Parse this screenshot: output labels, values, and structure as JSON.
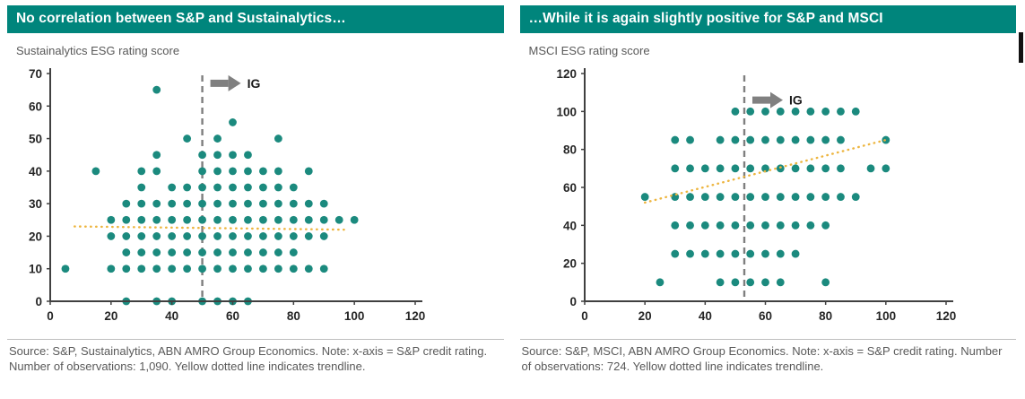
{
  "panels": [
    {
      "header": "No correlation between S&P and Sustainalytics…",
      "subtitle": "Sustainalytics ESG rating score",
      "source": "Source: S&P, Sustainalytics, ABN AMRO Group Economics. Note: x-axis = S&P credit rating. Number of observations: 1,090. Yellow dotted line indicates trendline."
    },
    {
      "header": "…While it is again slightly positive for S&P and MSCI",
      "subtitle": "MSCI ESG rating score",
      "source": "Source: S&P, MSCI, ABN AMRO Group Economics. Note: x-axis = S&P credit rating. Number of observations: 724. Yellow dotted line indicates trendline."
    }
  ],
  "colors": {
    "header_bg": "#00857C",
    "point": "#1B8A7E",
    "trendline": "#EDB53F",
    "axis": "#404040",
    "ig_line": "#7F7F7F",
    "arrow": "#808080"
  },
  "chart_data": [
    {
      "type": "scatter",
      "title": "No correlation between S&P and Sustainalytics…",
      "ylabel": "Sustainalytics ESG rating score",
      "xlabel": "S&P credit rating",
      "observations": "1,090",
      "xlim": [
        0,
        120
      ],
      "ylim": [
        0,
        70
      ],
      "xticks": [
        0,
        20,
        40,
        60,
        80,
        100,
        120
      ],
      "yticks": [
        0,
        10,
        20,
        30,
        40,
        50,
        60,
        70
      ],
      "grid": false,
      "ig_label": "IG",
      "ig_threshold_x": 50,
      "ig_arrow_y": 67,
      "trendline": {
        "x1": 8,
        "y1": 23,
        "x2": 97,
        "y2": 22
      },
      "points": [
        [
          35,
          65
        ],
        [
          60,
          55
        ],
        [
          45,
          50
        ],
        [
          55,
          50
        ],
        [
          75,
          50
        ],
        [
          35,
          45
        ],
        [
          50,
          45
        ],
        [
          55,
          45
        ],
        [
          60,
          45
        ],
        [
          65,
          45
        ],
        [
          15,
          40
        ],
        [
          30,
          40
        ],
        [
          35,
          40
        ],
        [
          50,
          40
        ],
        [
          55,
          40
        ],
        [
          60,
          40
        ],
        [
          65,
          40
        ],
        [
          70,
          40
        ],
        [
          75,
          40
        ],
        [
          85,
          40
        ],
        [
          30,
          35
        ],
        [
          40,
          35
        ],
        [
          45,
          35
        ],
        [
          50,
          35
        ],
        [
          55,
          35
        ],
        [
          60,
          35
        ],
        [
          65,
          35
        ],
        [
          70,
          35
        ],
        [
          75,
          35
        ],
        [
          80,
          35
        ],
        [
          25,
          30
        ],
        [
          30,
          30
        ],
        [
          35,
          30
        ],
        [
          40,
          30
        ],
        [
          45,
          30
        ],
        [
          50,
          30
        ],
        [
          55,
          30
        ],
        [
          60,
          30
        ],
        [
          65,
          30
        ],
        [
          70,
          30
        ],
        [
          75,
          30
        ],
        [
          80,
          30
        ],
        [
          85,
          30
        ],
        [
          90,
          30
        ],
        [
          20,
          25
        ],
        [
          25,
          25
        ],
        [
          30,
          25
        ],
        [
          35,
          25
        ],
        [
          40,
          25
        ],
        [
          45,
          25
        ],
        [
          50,
          25
        ],
        [
          55,
          25
        ],
        [
          60,
          25
        ],
        [
          65,
          25
        ],
        [
          70,
          25
        ],
        [
          75,
          25
        ],
        [
          80,
          25
        ],
        [
          85,
          25
        ],
        [
          90,
          25
        ],
        [
          95,
          25
        ],
        [
          100,
          25
        ],
        [
          20,
          20
        ],
        [
          25,
          20
        ],
        [
          30,
          20
        ],
        [
          35,
          20
        ],
        [
          40,
          20
        ],
        [
          45,
          20
        ],
        [
          50,
          20
        ],
        [
          55,
          20
        ],
        [
          60,
          20
        ],
        [
          65,
          20
        ],
        [
          70,
          20
        ],
        [
          75,
          20
        ],
        [
          80,
          20
        ],
        [
          85,
          20
        ],
        [
          90,
          20
        ],
        [
          25,
          15
        ],
        [
          30,
          15
        ],
        [
          35,
          15
        ],
        [
          40,
          15
        ],
        [
          45,
          15
        ],
        [
          50,
          15
        ],
        [
          55,
          15
        ],
        [
          60,
          15
        ],
        [
          65,
          15
        ],
        [
          70,
          15
        ],
        [
          75,
          15
        ],
        [
          80,
          15
        ],
        [
          5,
          10
        ],
        [
          20,
          10
        ],
        [
          25,
          10
        ],
        [
          30,
          10
        ],
        [
          35,
          10
        ],
        [
          40,
          10
        ],
        [
          45,
          10
        ],
        [
          50,
          10
        ],
        [
          55,
          10
        ],
        [
          60,
          10
        ],
        [
          65,
          10
        ],
        [
          70,
          10
        ],
        [
          75,
          10
        ],
        [
          80,
          10
        ],
        [
          85,
          10
        ],
        [
          90,
          10
        ],
        [
          25,
          0
        ],
        [
          35,
          0
        ],
        [
          40,
          0
        ],
        [
          50,
          0
        ],
        [
          55,
          0
        ],
        [
          60,
          0
        ],
        [
          65,
          0
        ]
      ]
    },
    {
      "type": "scatter",
      "title": "…While it is again slightly positive for S&P and MSCI",
      "ylabel": "MSCI ESG rating score",
      "xlabel": "S&P credit rating",
      "observations": "724",
      "xlim": [
        0,
        120
      ],
      "ylim": [
        0,
        120
      ],
      "xticks": [
        0,
        20,
        40,
        60,
        80,
        100,
        120
      ],
      "yticks": [
        0,
        20,
        40,
        60,
        80,
        100,
        120
      ],
      "grid": false,
      "ig_label": "IG",
      "ig_threshold_x": 53,
      "ig_arrow_y": 106,
      "trendline": {
        "x1": 20,
        "y1": 52,
        "x2": 100,
        "y2": 85
      },
      "points": [
        [
          50,
          100
        ],
        [
          55,
          100
        ],
        [
          60,
          100
        ],
        [
          65,
          100
        ],
        [
          70,
          100
        ],
        [
          75,
          100
        ],
        [
          80,
          100
        ],
        [
          85,
          100
        ],
        [
          90,
          100
        ],
        [
          30,
          85
        ],
        [
          35,
          85
        ],
        [
          45,
          85
        ],
        [
          50,
          85
        ],
        [
          55,
          85
        ],
        [
          60,
          85
        ],
        [
          65,
          85
        ],
        [
          70,
          85
        ],
        [
          75,
          85
        ],
        [
          80,
          85
        ],
        [
          85,
          85
        ],
        [
          100,
          85
        ],
        [
          30,
          70
        ],
        [
          35,
          70
        ],
        [
          40,
          70
        ],
        [
          45,
          70
        ],
        [
          50,
          70
        ],
        [
          55,
          70
        ],
        [
          60,
          70
        ],
        [
          65,
          70
        ],
        [
          70,
          70
        ],
        [
          75,
          70
        ],
        [
          80,
          70
        ],
        [
          85,
          70
        ],
        [
          95,
          70
        ],
        [
          100,
          70
        ],
        [
          20,
          55
        ],
        [
          30,
          55
        ],
        [
          35,
          55
        ],
        [
          40,
          55
        ],
        [
          45,
          55
        ],
        [
          50,
          55
        ],
        [
          55,
          55
        ],
        [
          60,
          55
        ],
        [
          65,
          55
        ],
        [
          70,
          55
        ],
        [
          75,
          55
        ],
        [
          80,
          55
        ],
        [
          85,
          55
        ],
        [
          90,
          55
        ],
        [
          30,
          40
        ],
        [
          35,
          40
        ],
        [
          40,
          40
        ],
        [
          45,
          40
        ],
        [
          50,
          40
        ],
        [
          55,
          40
        ],
        [
          60,
          40
        ],
        [
          65,
          40
        ],
        [
          70,
          40
        ],
        [
          75,
          40
        ],
        [
          80,
          40
        ],
        [
          30,
          25
        ],
        [
          35,
          25
        ],
        [
          40,
          25
        ],
        [
          45,
          25
        ],
        [
          50,
          25
        ],
        [
          55,
          25
        ],
        [
          60,
          25
        ],
        [
          65,
          25
        ],
        [
          70,
          25
        ],
        [
          25,
          10
        ],
        [
          45,
          10
        ],
        [
          50,
          10
        ],
        [
          55,
          10
        ],
        [
          60,
          10
        ],
        [
          65,
          10
        ],
        [
          80,
          10
        ]
      ]
    }
  ]
}
